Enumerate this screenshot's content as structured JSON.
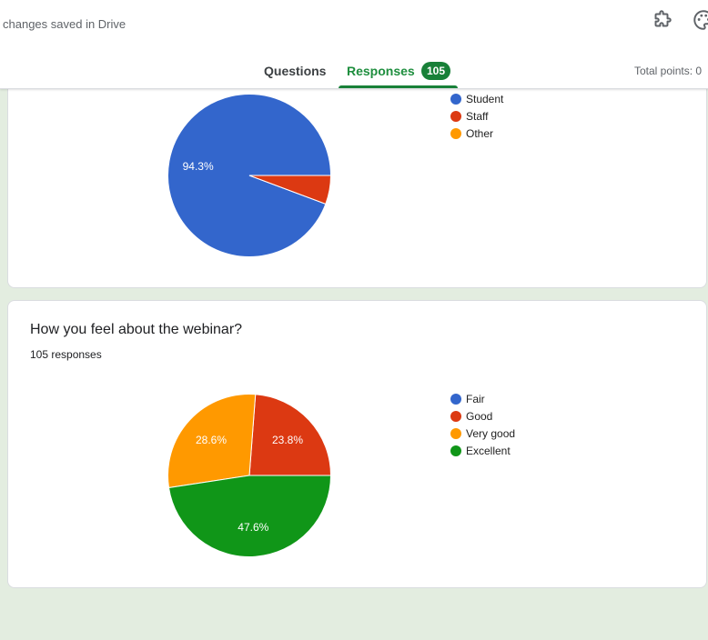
{
  "header": {
    "saved_text": "changes saved in Drive",
    "tabs": [
      {
        "label": "Questions"
      },
      {
        "label": "Responses"
      }
    ],
    "responses_badge": "105",
    "total_points": "Total points: 0",
    "icons": [
      "addon-icon",
      "palette-icon"
    ]
  },
  "questions": [
    {
      "title": "",
      "responses_text": "",
      "chart_data": {
        "type": "pie",
        "categories": [
          "Student",
          "Staff",
          "Other"
        ],
        "values": [
          94.3,
          5.7,
          0
        ],
        "labels": [
          "94.3%",
          "",
          ""
        ],
        "colors": [
          "#3366cc",
          "#dc3912",
          "#ff9900"
        ],
        "legend": "right"
      }
    },
    {
      "title": "How you feel about the webinar?",
      "responses_text": "105 responses",
      "chart_data": {
        "type": "pie",
        "categories": [
          "Fair",
          "Good",
          "Very good",
          "Excellent"
        ],
        "values": [
          0,
          23.8,
          28.6,
          47.6
        ],
        "labels": [
          "",
          "23.8%",
          "28.6%",
          "47.6%"
        ],
        "colors": [
          "#3366cc",
          "#dc3912",
          "#ff9900",
          "#109618"
        ],
        "legend": "right"
      }
    }
  ]
}
